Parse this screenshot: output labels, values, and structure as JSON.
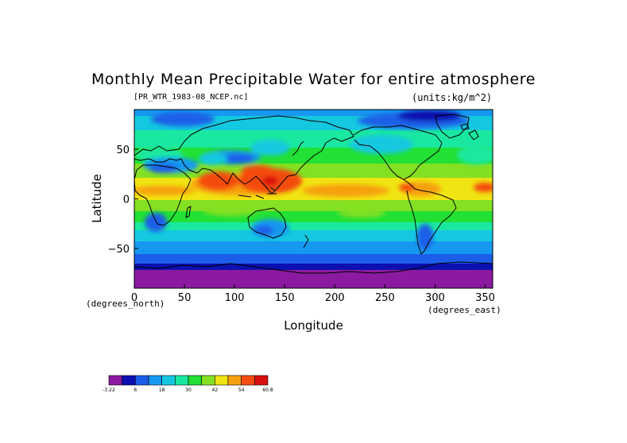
{
  "title": "Monthly Mean Precipitable Water for entire atmosphere",
  "file_label": "[PR_WTR_1983-08_NCEP.nc]",
  "units_label": "(units:kg/m^2)",
  "chart_data": {
    "type": "heatmap",
    "xlabel": "Longitude",
    "ylabel": "Latitude",
    "x_unit": "(degrees_east)",
    "y_unit": "(degrees_north)",
    "xlim": [
      0,
      357.5
    ],
    "ylim": [
      -90,
      90
    ],
    "x_ticks": [
      "0",
      "50",
      "100",
      "150",
      "200",
      "250",
      "300",
      "350"
    ],
    "y_ticks": [
      "50",
      "0",
      "−50"
    ],
    "colorbar": {
      "colors": [
        "#8b1aa0",
        "#0c10b0",
        "#1c5ee8",
        "#1698f0",
        "#14c8e0",
        "#1ae8a0",
        "#22e034",
        "#84e022",
        "#f0e412",
        "#f7a00e",
        "#f44c10",
        "#d81010"
      ],
      "labels": [
        "-3.22",
        "6",
        "18",
        "30",
        "42",
        "54",
        "60.8"
      ]
    }
  }
}
